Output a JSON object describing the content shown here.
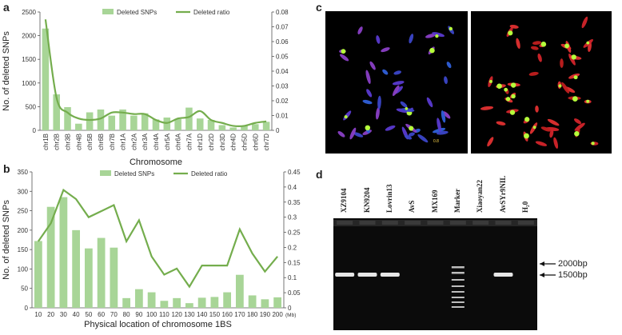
{
  "panels": {
    "a": {
      "label": "a"
    },
    "b": {
      "label": "b"
    },
    "c": {
      "label": "c",
      "scale_text": "0.8"
    },
    "d": {
      "label": "d",
      "lanes": [
        "XZ9104",
        "KN9204",
        "Lovrin13",
        "AvS",
        "MX169",
        "Marker",
        "Xiaoyan22",
        "AvSYr9NIL",
        "H₂0"
      ],
      "markers": [
        "2000bp",
        "1500bp"
      ],
      "bands_present": [
        true,
        true,
        true,
        false,
        false,
        false,
        false,
        true,
        false
      ]
    }
  },
  "chart_data": [
    {
      "type": "bar",
      "panel": "a",
      "categories": [
        "chr1B",
        "chr2B",
        "chr3B",
        "chr4B",
        "chr5B",
        "chr6B",
        "chr7B",
        "chr1A",
        "chr2A",
        "chr3A",
        "chr4A",
        "chr5A",
        "chr6A",
        "chr7A",
        "chr1D",
        "chr2D",
        "chr3D",
        "chr4D",
        "chr5D",
        "chr6D",
        "chr7D"
      ],
      "series": [
        {
          "name": "Deleted SNPs",
          "axis": "left",
          "values": [
            2150,
            760,
            490,
            140,
            380,
            440,
            310,
            440,
            310,
            360,
            230,
            270,
            240,
            480,
            250,
            220,
            110,
            60,
            100,
            130,
            180
          ]
        },
        {
          "name": "Deleted ratio",
          "type": "line",
          "axis": "right",
          "values": [
            0.075,
            0.022,
            0.012,
            0.008,
            0.007,
            0.008,
            0.012,
            0.012,
            0.011,
            0.011,
            0.007,
            0.005,
            0.008,
            0.009,
            0.013,
            0.007,
            0.005,
            0.003,
            0.003,
            0.005,
            0.006
          ]
        }
      ],
      "xlabel": "Chromosome",
      "ylabel": "No. of deleted SNPs",
      "ylim": [
        0,
        2500
      ],
      "y_ticks": [
        0,
        500,
        1000,
        1500,
        2000,
        2500
      ],
      "y2lim": [
        0,
        0.08
      ],
      "y2_ticks": [
        "0",
        "0.01",
        "0.02",
        "0.03",
        "0.04",
        "0.05",
        "0.06",
        "0.07",
        "0.08"
      ],
      "legend": "top-center"
    },
    {
      "type": "bar",
      "panel": "b",
      "categories": [
        "10",
        "20",
        "30",
        "40",
        "50",
        "60",
        "70",
        "80",
        "90",
        "100",
        "110",
        "120",
        "130",
        "140",
        "150",
        "160",
        "170",
        "180",
        "190",
        "200"
      ],
      "x_unit": "(Mb)",
      "series": [
        {
          "name": "Deleted SNPs",
          "axis": "left",
          "values": [
            172,
            260,
            285,
            200,
            153,
            180,
            155,
            25,
            48,
            40,
            18,
            25,
            12,
            26,
            28,
            40,
            85,
            32,
            22,
            27
          ]
        },
        {
          "name": "Deleted ratio",
          "type": "line",
          "axis": "right",
          "values": [
            0.22,
            0.28,
            0.39,
            0.36,
            0.3,
            0.32,
            0.34,
            0.22,
            0.29,
            0.17,
            0.11,
            0.13,
            0.07,
            0.14,
            0.14,
            0.14,
            0.26,
            0.18,
            0.12,
            0.17
          ]
        }
      ],
      "xlabel": "Physical location of chromosome 1BS",
      "ylabel": "No. of deleted SNPs",
      "ylim": [
        0,
        350
      ],
      "y_ticks": [
        0,
        50,
        100,
        150,
        200,
        250,
        300,
        350
      ],
      "y2lim": [
        0,
        0.45
      ],
      "y2_ticks": [
        "0",
        "0.05",
        "0.1",
        "0.15",
        "0.2",
        "0.25",
        "0.3",
        "0.35",
        "0.4",
        "0.45"
      ],
      "legend": "top-center"
    }
  ],
  "colors": {
    "bar": "#a8d597",
    "line": "#74ad4d"
  }
}
